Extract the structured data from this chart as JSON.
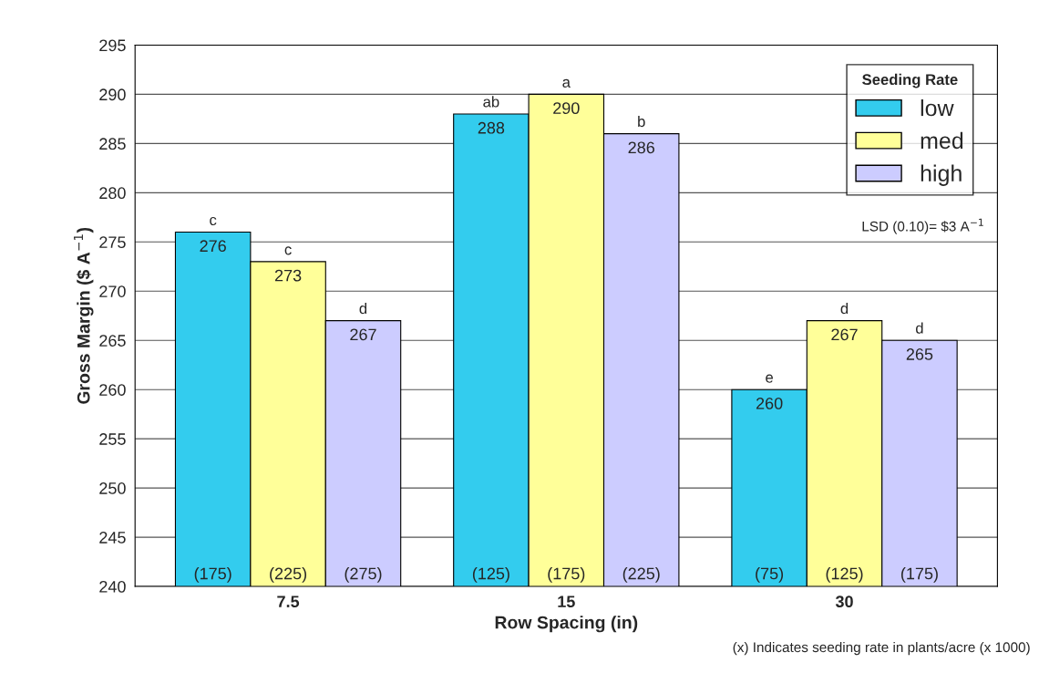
{
  "chart_data": {
    "type": "bar",
    "categories": [
      "7.5",
      "15",
      "30"
    ],
    "xlabel": "Row Spacing (in)",
    "ylabel": "Gross Margin ($ A$^{−1}$)",
    "legend_title": "Seeding Rate",
    "legend": "top right",
    "series": [
      {
        "name": "low",
        "color": "#33ccee",
        "values": [
          276,
          288,
          260
        ]
      },
      {
        "name": "med",
        "color": "#ffff99",
        "values": [
          273,
          290,
          267
        ]
      },
      {
        "name": "high",
        "color": "#ccccff",
        "values": [
          267,
          286,
          265
        ]
      }
    ],
    "ylim": [
      240,
      295
    ],
    "yticks": [
      240,
      245,
      250,
      255,
      260,
      265,
      270,
      275,
      280,
      285,
      290,
      295
    ],
    "grid": "y",
    "data_labels": true,
    "annotations": [
      "c",
      "c",
      "d",
      "ab",
      "a",
      "b",
      "e",
      "d",
      "d",
      "(175)",
      "(225)",
      "(275)",
      "(125)",
      "(175)",
      "(225)",
      "(75)",
      "(125)",
      "(175)",
      "LSD (0.10)= $3 A$^{−1}$",
      "(x) Indicates seeding rate in plants/acre (x 1000)"
    ]
  }
}
